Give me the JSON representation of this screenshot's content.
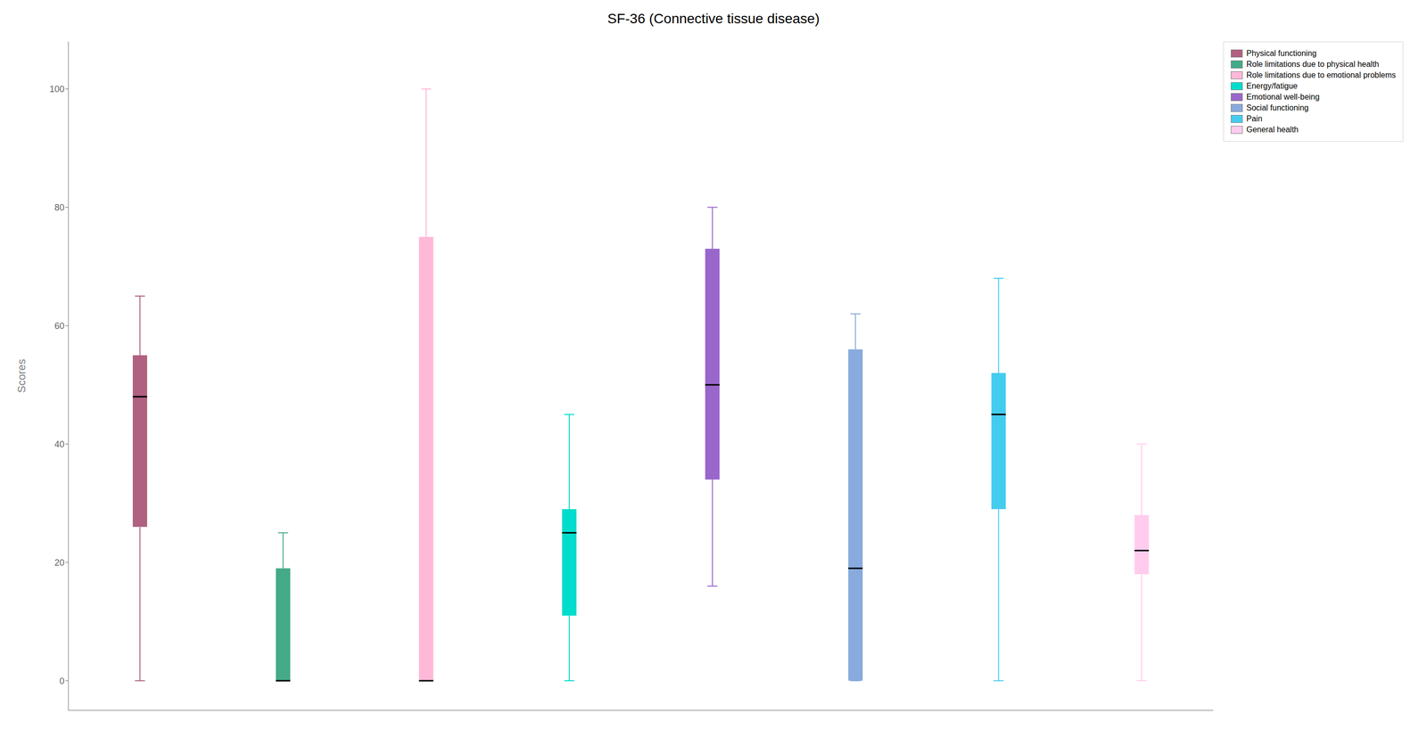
{
  "chart_data": {
    "type": "box",
    "title": "SF-36 (Connective tissue disease)",
    "ylabel": "Scores",
    "series": [
      {
        "name": "Physical functioning",
        "color": "#b06080",
        "whislo": 0,
        "q1": 26,
        "median": 48,
        "q3": 55,
        "whishi": 65
      },
      {
        "name": "Role limitations due to physical health",
        "color": "#44aa88",
        "whislo": 0,
        "q1": 0,
        "median": 0,
        "q3": 19,
        "whishi": 25
      },
      {
        "name": "Role limitations due to emotional problems",
        "color": "#ffb8d8",
        "whislo": 0,
        "q1": 0,
        "median": 0,
        "q3": 75,
        "whishi": 100
      },
      {
        "name": "Energy/fatigue",
        "color": "#00ddcc",
        "whislo": 0,
        "q1": 11,
        "median": 25,
        "q3": 29,
        "whishi": 45
      },
      {
        "name": "Emotional well-being",
        "color": "#9966cc",
        "whislo": 16,
        "q1": 34,
        "median": 50,
        "q3": 73,
        "whishi": 80
      },
      {
        "name": "Social functioning",
        "color": "#88aadd",
        "whislo": 0,
        "q1": 0,
        "median": 19,
        "q3": 56,
        "whishi": 62
      },
      {
        "name": "Pain",
        "color": "#44ccee",
        "whislo": 0,
        "q1": 29,
        "median": 45,
        "q3": 52,
        "whishi": 68
      },
      {
        "name": "General health",
        "color": "#ffccee",
        "whislo": 0,
        "q1": 18,
        "median": 22,
        "q3": 28,
        "whishi": 40
      }
    ],
    "ylim": [
      -5,
      108
    ],
    "yticks": [
      0,
      20,
      40,
      60,
      80,
      100
    ],
    "grid": false,
    "legend": "upper right",
    "tick_labels": "y"
  }
}
